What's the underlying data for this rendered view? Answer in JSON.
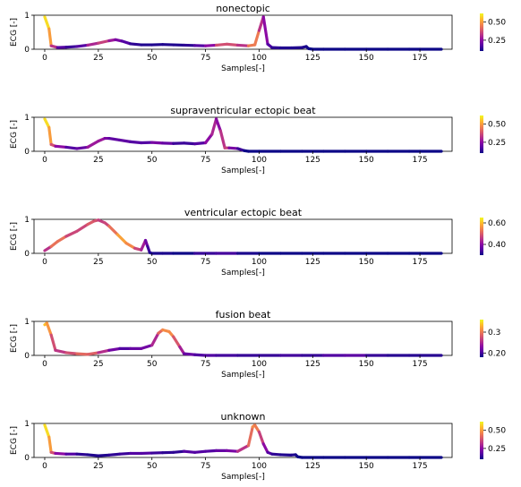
{
  "colormap": {
    "name": "plasma",
    "stops": [
      "#0d0887",
      "#5302a3",
      "#8b0aa5",
      "#b83289",
      "#db5c68",
      "#f48849",
      "#febc2a",
      "#f0f921"
    ]
  },
  "chart_data": [
    {
      "type": "line",
      "title": "nonectopic",
      "xlabel": "Samples[-]",
      "ylabel": "ECG [-]",
      "xlim": [
        -5,
        190
      ],
      "ylim": [
        0,
        1
      ],
      "xticks": [
        0,
        25,
        50,
        75,
        100,
        125,
        150,
        175
      ],
      "yticks": [
        0,
        1
      ],
      "colorbar": {
        "ticks": [
          0.25,
          0.5
        ],
        "range": [
          0.1,
          0.62
        ]
      },
      "series": [
        {
          "x": [
            0,
            2,
            3,
            6,
            10,
            15,
            20,
            25,
            30,
            33,
            36,
            40,
            45,
            50,
            55,
            60,
            65,
            70,
            75,
            80,
            85,
            90,
            95,
            98,
            100,
            102,
            104,
            106,
            110,
            115,
            120,
            122,
            123,
            125,
            130,
            140,
            150,
            160,
            170,
            175,
            185
          ],
          "y": [
            0.95,
            0.6,
            0.1,
            0.05,
            0.06,
            0.08,
            0.12,
            0.18,
            0.25,
            0.28,
            0.24,
            0.16,
            0.13,
            0.13,
            0.14,
            0.13,
            0.12,
            0.11,
            0.1,
            0.12,
            0.15,
            0.12,
            0.1,
            0.13,
            0.55,
            0.95,
            0.15,
            0.05,
            0.04,
            0.04,
            0.05,
            0.08,
            0.02,
            0,
            0,
            0,
            0,
            0,
            0,
            0,
            0
          ],
          "c": [
            0.62,
            0.55,
            0.45,
            0.2,
            0.15,
            0.15,
            0.2,
            0.4,
            0.3,
            0.25,
            0.2,
            0.15,
            0.12,
            0.12,
            0.12,
            0.12,
            0.12,
            0.15,
            0.2,
            0.3,
            0.45,
            0.3,
            0.35,
            0.55,
            0.35,
            0.3,
            0.2,
            0.15,
            0.12,
            0.12,
            0.12,
            0.12,
            0.1,
            0.1,
            0.1,
            0.1,
            0.1,
            0.1,
            0.1,
            0.1,
            0.1
          ]
        }
      ]
    },
    {
      "type": "line",
      "title": "supraventricular ectopic beat",
      "xlabel": "Samples[-]",
      "ylabel": "ECG [-]",
      "xlim": [
        -5,
        190
      ],
      "ylim": [
        0,
        1
      ],
      "xticks": [
        0,
        25,
        50,
        75,
        100,
        125,
        150,
        175
      ],
      "yticks": [
        0,
        1
      ],
      "colorbar": {
        "ticks": [
          0.25,
          0.5
        ],
        "range": [
          0.1,
          0.62
        ]
      },
      "series": [
        {
          "x": [
            0,
            2,
            3,
            5,
            10,
            15,
            20,
            25,
            28,
            30,
            35,
            40,
            45,
            50,
            55,
            60,
            65,
            70,
            75,
            78,
            80,
            82,
            84,
            86,
            90,
            93,
            95,
            100,
            110,
            120,
            130,
            140,
            150,
            160,
            170,
            175,
            185
          ],
          "y": [
            0.95,
            0.7,
            0.2,
            0.15,
            0.12,
            0.08,
            0.12,
            0.3,
            0.38,
            0.38,
            0.33,
            0.28,
            0.25,
            0.26,
            0.24,
            0.23,
            0.24,
            0.22,
            0.25,
            0.5,
            0.95,
            0.6,
            0.1,
            0.1,
            0.08,
            0.02,
            0,
            0,
            0,
            0,
            0,
            0,
            0,
            0,
            0,
            0,
            0
          ],
          "c": [
            0.62,
            0.55,
            0.45,
            0.3,
            0.2,
            0.15,
            0.25,
            0.3,
            0.25,
            0.2,
            0.18,
            0.2,
            0.15,
            0.2,
            0.25,
            0.15,
            0.15,
            0.15,
            0.2,
            0.3,
            0.3,
            0.2,
            0.45,
            0.25,
            0.2,
            0.1,
            0.1,
            0.1,
            0.1,
            0.1,
            0.1,
            0.1,
            0.1,
            0.1,
            0.1,
            0.1,
            0.1
          ]
        }
      ]
    },
    {
      "type": "line",
      "title": "ventricular ectopic beat",
      "xlabel": "Samples[-]",
      "ylabel": "ECG [-]",
      "xlim": [
        -5,
        190
      ],
      "ylim": [
        0,
        1
      ],
      "xticks": [
        0,
        25,
        50,
        75,
        100,
        125,
        150,
        175
      ],
      "yticks": [
        0,
        1
      ],
      "colorbar": {
        "ticks": [
          0.4,
          0.6
        ],
        "range": [
          0.3,
          0.65
        ]
      },
      "series": [
        {
          "x": [
            0,
            3,
            6,
            10,
            15,
            20,
            23,
            25,
            28,
            30,
            34,
            38,
            42,
            45,
            47,
            48,
            49,
            50,
            55,
            60,
            70,
            80,
            90,
            100,
            110,
            120,
            130,
            140,
            150,
            160,
            170,
            175,
            185
          ],
          "y": [
            0.08,
            0.2,
            0.35,
            0.5,
            0.65,
            0.85,
            0.95,
            0.98,
            0.9,
            0.8,
            0.55,
            0.3,
            0.15,
            0.1,
            0.38,
            0.2,
            0.02,
            0,
            0,
            0,
            0,
            0,
            0,
            0,
            0,
            0,
            0,
            0,
            0,
            0,
            0,
            0,
            0
          ],
          "c": [
            0.4,
            0.5,
            0.55,
            0.5,
            0.45,
            0.5,
            0.5,
            0.48,
            0.45,
            0.5,
            0.55,
            0.6,
            0.5,
            0.45,
            0.4,
            0.35,
            0.32,
            0.3,
            0.32,
            0.3,
            0.3,
            0.36,
            0.32,
            0.3,
            0.3,
            0.3,
            0.3,
            0.3,
            0.3,
            0.3,
            0.3,
            0.3,
            0.3
          ]
        }
      ]
    },
    {
      "type": "line",
      "title": "fusion beat",
      "xlabel": "Samples[-]",
      "ylabel": "ECG [-]",
      "xlim": [
        -5,
        190
      ],
      "ylim": [
        0,
        1
      ],
      "xticks": [
        0,
        25,
        50,
        75,
        100,
        125,
        150,
        175
      ],
      "yticks": [
        0,
        1
      ],
      "colorbar": {
        "ticks": [
          0.2,
          0.3
        ],
        "range": [
          0.18,
          0.36
        ]
      },
      "series": [
        {
          "x": [
            0,
            1,
            3,
            5,
            10,
            15,
            20,
            25,
            30,
            35,
            40,
            45,
            50,
            53,
            55,
            58,
            60,
            63,
            65,
            70,
            75,
            80,
            90,
            100,
            110,
            120,
            130,
            140,
            150,
            160,
            170,
            175,
            185
          ],
          "y": [
            0.9,
            0.95,
            0.6,
            0.15,
            0.08,
            0.05,
            0.03,
            0.08,
            0.15,
            0.2,
            0.2,
            0.2,
            0.3,
            0.65,
            0.75,
            0.7,
            0.55,
            0.25,
            0.05,
            0.02,
            0,
            0,
            0,
            0,
            0,
            0,
            0,
            0,
            0,
            0,
            0,
            0,
            0
          ],
          "c": [
            0.34,
            0.33,
            0.3,
            0.25,
            0.27,
            0.28,
            0.3,
            0.27,
            0.24,
            0.2,
            0.21,
            0.22,
            0.22,
            0.28,
            0.3,
            0.32,
            0.3,
            0.26,
            0.23,
            0.2,
            0.21,
            0.2,
            0.2,
            0.19,
            0.2,
            0.2,
            0.19,
            0.22,
            0.2,
            0.19,
            0.19,
            0.19,
            0.19
          ]
        }
      ]
    },
    {
      "type": "line",
      "title": "unknown",
      "xlabel": "Samples[-]",
      "ylabel": "ECG [-]",
      "xlim": [
        -5,
        190
      ],
      "ylim": [
        0,
        1
      ],
      "xticks": [
        0,
        25,
        50,
        75,
        100,
        125,
        150,
        175
      ],
      "yticks": [
        0,
        1
      ],
      "colorbar": {
        "ticks": [
          0.25,
          0.5
        ],
        "range": [
          0.1,
          0.62
        ]
      },
      "series": [
        {
          "x": [
            0,
            2,
            3,
            5,
            10,
            15,
            20,
            25,
            30,
            35,
            40,
            45,
            50,
            55,
            60,
            65,
            70,
            75,
            80,
            85,
            90,
            95,
            97,
            98,
            100,
            102,
            104,
            106,
            110,
            115,
            117,
            118,
            120,
            130,
            140,
            150,
            160,
            170,
            175,
            185
          ],
          "y": [
            0.95,
            0.6,
            0.15,
            0.12,
            0.1,
            0.1,
            0.08,
            0.05,
            0.07,
            0.1,
            0.12,
            0.12,
            0.13,
            0.14,
            0.15,
            0.18,
            0.15,
            0.18,
            0.2,
            0.2,
            0.18,
            0.35,
            0.9,
            0.95,
            0.75,
            0.4,
            0.15,
            0.1,
            0.08,
            0.07,
            0.08,
            0.02,
            0,
            0,
            0,
            0,
            0,
            0,
            0,
            0
          ],
          "c": [
            0.62,
            0.55,
            0.45,
            0.3,
            0.2,
            0.15,
            0.12,
            0.12,
            0.12,
            0.15,
            0.15,
            0.2,
            0.15,
            0.15,
            0.12,
            0.15,
            0.2,
            0.15,
            0.2,
            0.2,
            0.25,
            0.4,
            0.45,
            0.5,
            0.4,
            0.3,
            0.2,
            0.15,
            0.12,
            0.12,
            0.12,
            0.1,
            0.1,
            0.1,
            0.1,
            0.1,
            0.1,
            0.1,
            0.1,
            0.1
          ]
        }
      ]
    }
  ]
}
